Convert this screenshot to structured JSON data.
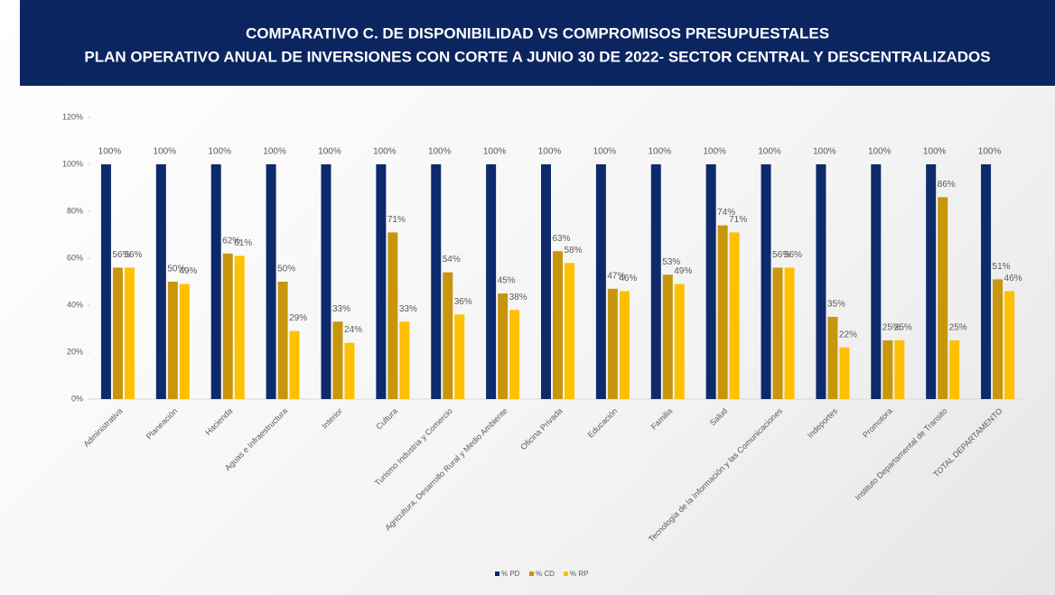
{
  "chart_data": {
    "type": "bar",
    "title": "COMPARATIVO C. DE DISPONIBILIDAD VS COMPROMISOS PRESUPUESTALES",
    "subtitle": "PLAN OPERATIVO ANUAL DE INVERSIONES CON CORTE A  JUNIO 30 DE 2022- SECTOR CENTRAL Y DESCENTRALIZADOS",
    "categories": [
      "Administrativa",
      "Planeación",
      "Hacienda",
      "Aguas e Infraestructura",
      "Interior",
      "Cultura",
      "Turismo Industria y Comercio",
      "Agricultura, Desarrollo Rural y Medio Ambiente",
      "Oficina Privada",
      "Educación",
      "Familia",
      "Salud",
      "Tecnología de la Información y las Comunicaciones",
      "Indeportes",
      "Promotora",
      "Instituto Departamental de Transito",
      "TOTAL DEPARTAMENTO"
    ],
    "series": [
      {
        "name": "% PD",
        "color": "#0d2a6b",
        "values": [
          100,
          100,
          100,
          100,
          100,
          100,
          100,
          100,
          100,
          100,
          100,
          100,
          100,
          100,
          100,
          100,
          100
        ],
        "value_labels": [
          "100%",
          "100%",
          "100%",
          "100%",
          "100%",
          "100%",
          "100%",
          "100%",
          "100%",
          "100%",
          "100%",
          "100%",
          "100%",
          "100%",
          "100%",
          "100%",
          "100%"
        ]
      },
      {
        "name": "% CD",
        "color": "#c8960c",
        "values": [
          56,
          50,
          62,
          50,
          33,
          71,
          54,
          45,
          63,
          47,
          53,
          74,
          56,
          35,
          25,
          86,
          51
        ],
        "value_labels": [
          "56%",
          "50%",
          "62%",
          "50%",
          "33%",
          "71%",
          "54%",
          "45%",
          "63%",
          "47%",
          "53%",
          "74%",
          "56%",
          "35%",
          "25%",
          "86%",
          "51%"
        ]
      },
      {
        "name": "% RP",
        "color": "#ffc000",
        "values": [
          56,
          49,
          61,
          29,
          24,
          33,
          36,
          38,
          58,
          46,
          49,
          71,
          56,
          22,
          25,
          25,
          46
        ],
        "value_labels": [
          "56%",
          "49%",
          "61%",
          "29%",
          "24%",
          "33%",
          "36%",
          "38%",
          "58%",
          "46%",
          "49%",
          "71%",
          "56%",
          "22%",
          "25%",
          "25%",
          "46%"
        ]
      }
    ],
    "ylim": [
      0,
      120
    ],
    "yticks": [
      {
        "value": 0,
        "label": "0%"
      },
      {
        "value": 20,
        "label": "20%"
      },
      {
        "value": 40,
        "label": "40%"
      },
      {
        "value": 60,
        "label": "60%"
      },
      {
        "value": 80,
        "label": "80%"
      },
      {
        "value": 100,
        "label": "100%"
      },
      {
        "value": 120,
        "label": "120%"
      }
    ],
    "legend": "bottom"
  }
}
